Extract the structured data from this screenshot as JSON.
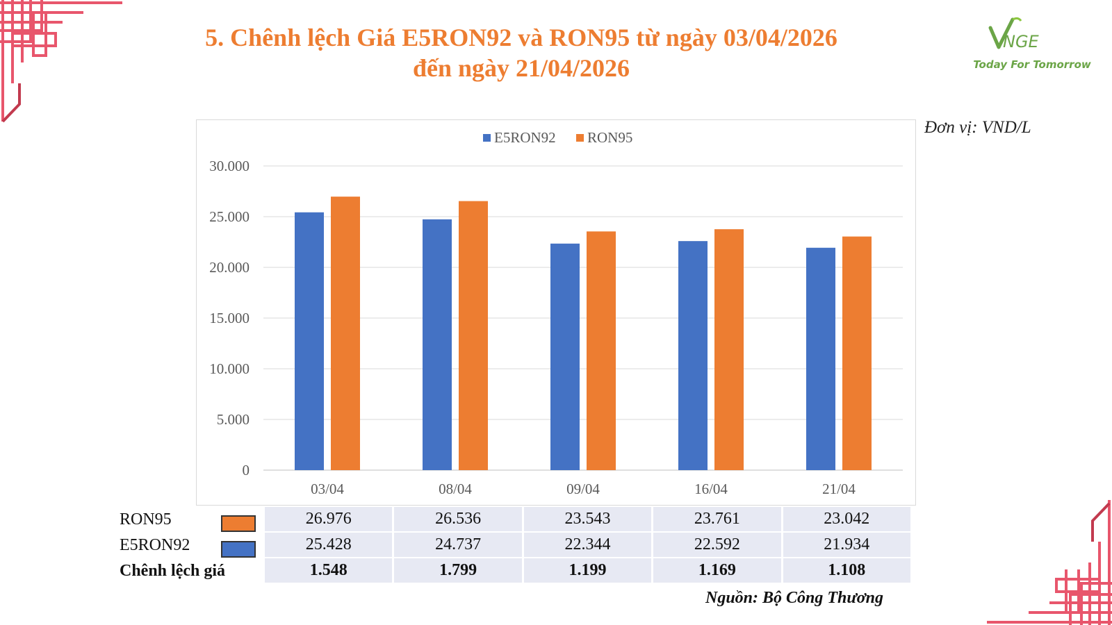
{
  "title": {
    "line1": "5. Chênh lệch Giá E5RON92 và RON95 từ ngày 03/04/2026",
    "line2": "đến ngày 21/04/2026"
  },
  "logo": {
    "mark": "VNGE",
    "tagline": "Today For Tomorrow"
  },
  "unit_label": "Đơn vị: VND/L",
  "source": "Nguồn: Bộ Công Thương",
  "colors": {
    "accent": "#ED7D31",
    "e5ron92": "#4472C4",
    "ron95": "#ED7D31",
    "decor": "#E8566C",
    "logo_green": "#6BA547"
  },
  "chart_data": {
    "type": "bar",
    "categories": [
      "03/04",
      "08/04",
      "09/04",
      "16/04",
      "21/04"
    ],
    "series": [
      {
        "name": "E5RON92",
        "color": "#4472C4",
        "values": [
          25428,
          24737,
          22344,
          22592,
          21934
        ]
      },
      {
        "name": "RON95",
        "color": "#ED7D31",
        "values": [
          26976,
          26536,
          23543,
          23761,
          23042
        ]
      }
    ],
    "ylim": [
      0,
      30000
    ],
    "yticks": [
      0,
      5000,
      10000,
      15000,
      20000,
      25000,
      30000
    ],
    "ytick_labels": [
      "0",
      "5.000",
      "10.000",
      "15.000",
      "20.000",
      "25.000",
      "30.000"
    ],
    "grid": true,
    "legend": "top-center"
  },
  "table": {
    "rows": [
      {
        "label": "RON95",
        "swatch": "#ED7D31",
        "values": [
          "26.976",
          "26.536",
          "23.543",
          "23.761",
          "23.042"
        ]
      },
      {
        "label": "E5RON92",
        "swatch": "#4472C4",
        "values": [
          "25.428",
          "24.737",
          "22.344",
          "22.592",
          "21.934"
        ]
      },
      {
        "label": "Chênh lệch giá",
        "values": [
          "1.548",
          "1.799",
          "1.199",
          "1.169",
          "1.108"
        ]
      }
    ]
  }
}
